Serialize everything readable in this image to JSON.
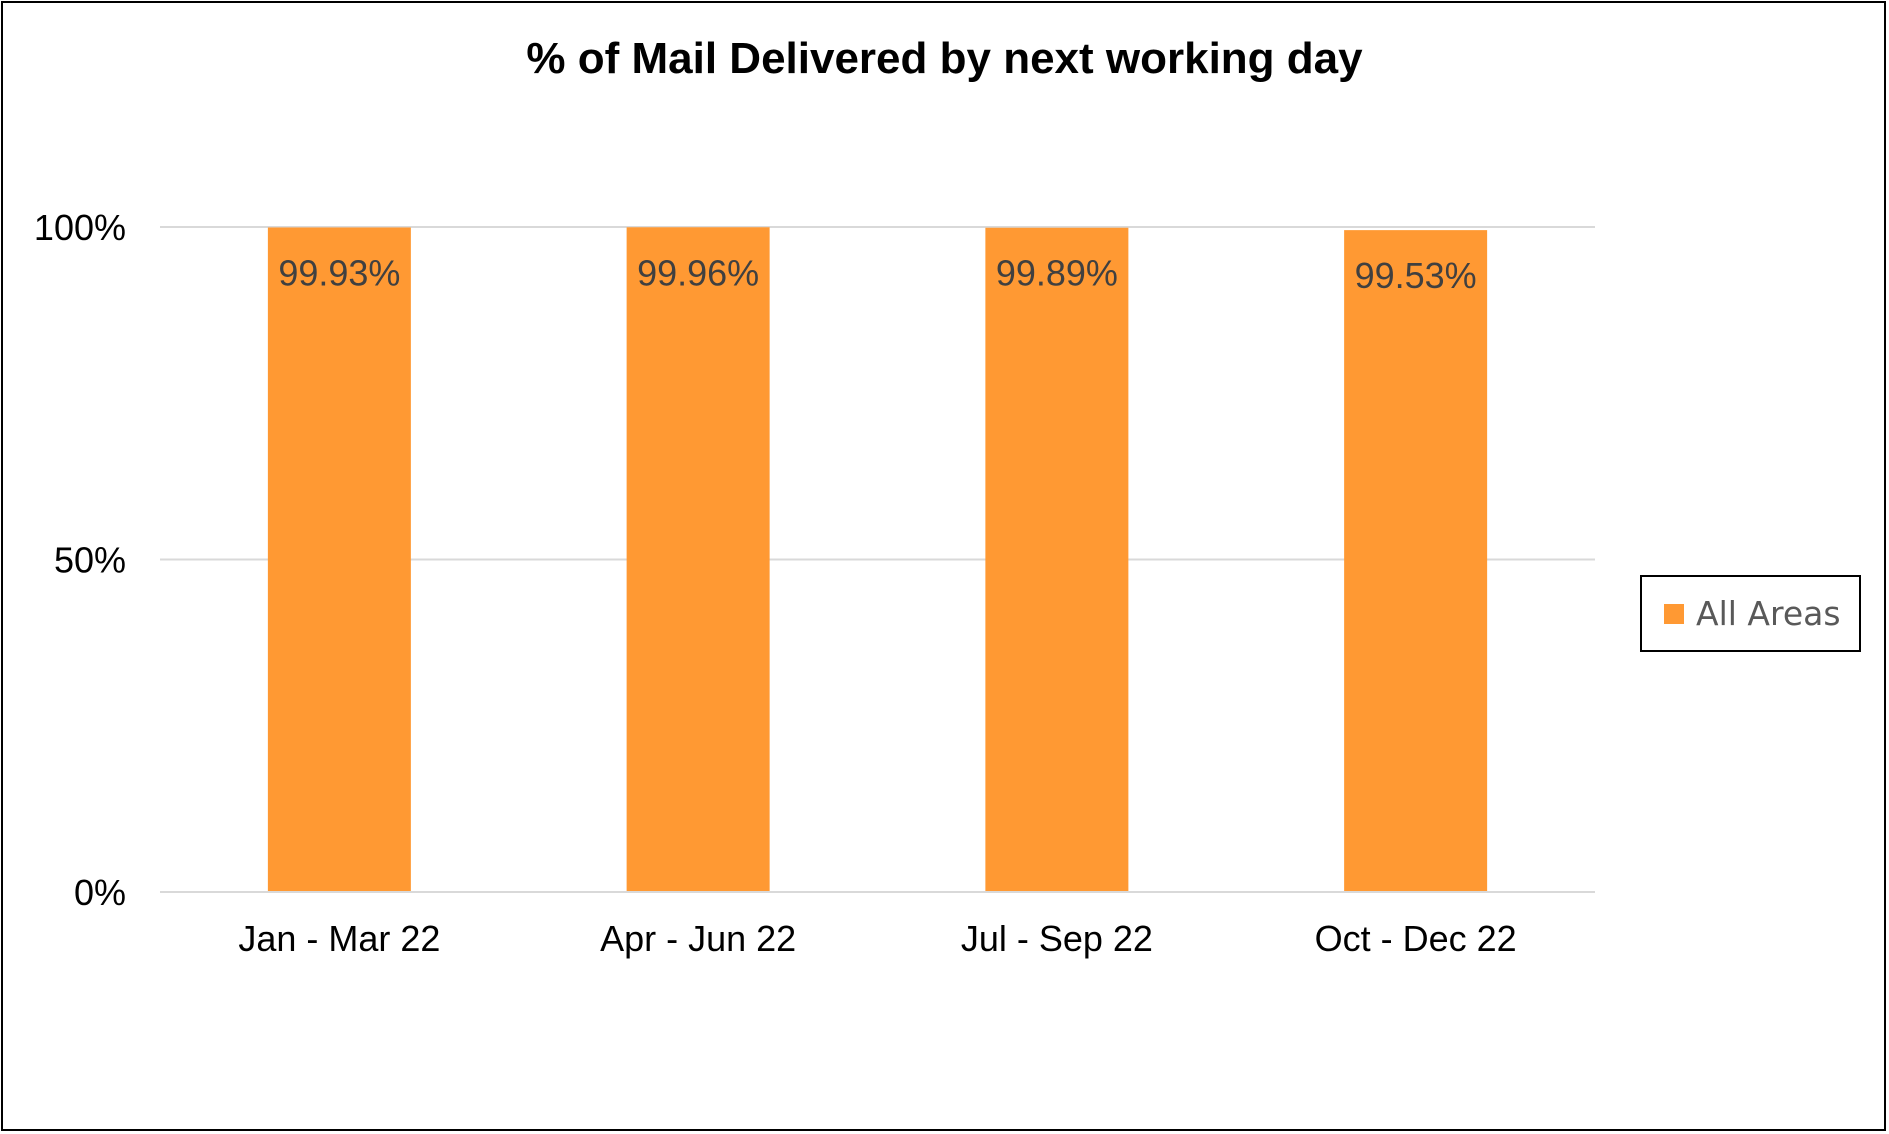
{
  "chart_data": {
    "type": "bar",
    "title": "% of Mail Delivered by next working day",
    "xlabel": "",
    "ylabel": "",
    "categories": [
      "Jan - Mar 22",
      "Apr - Jun 22",
      "Jul - Sep 22",
      "Oct - Dec 22"
    ],
    "series": [
      {
        "name": "All Areas",
        "values": [
          99.93,
          99.96,
          99.89,
          99.53
        ],
        "data_labels": [
          "99.93%",
          "99.96%",
          "99.89%",
          "99.53%"
        ],
        "color": "#FF9933"
      }
    ],
    "ylim": [
      0,
      100
    ],
    "y_ticks": [
      0,
      50,
      100
    ],
    "y_tick_labels": [
      "0%",
      "50%",
      "100%"
    ],
    "grid": true,
    "legend_position": "right"
  },
  "colors": {
    "bar": "#FF9933",
    "grid": "#D9D9D9",
    "axis_text": "#000000",
    "data_label": "#404040",
    "legend_text": "#595959"
  }
}
